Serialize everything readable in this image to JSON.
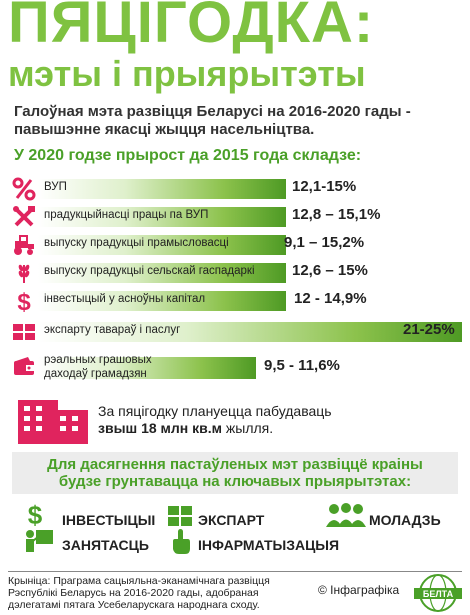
{
  "title": {
    "main": "ПЯЦІГОДКА:",
    "sub": "мэты і прыярытэты"
  },
  "goal": {
    "text": "Галоўная мэта развіцця Беларусі на 2016-2020 гады - павышэнне якасці жыцця насельніцтва."
  },
  "growth": {
    "heading": "У 2020 годзе прырост да 2015 года складзе:",
    "items": [
      {
        "label": "ВУП",
        "value": "12,1-15%",
        "icon": "percent-icon"
      },
      {
        "label": "прадукцыйнасці працы па ВУП",
        "value": "12,8 – 15,1%",
        "icon": "tools-icon"
      },
      {
        "label": "выпуску прадукцыі прамысловасці",
        "value": "9,1 – 15,2%",
        "icon": "tractor-icon"
      },
      {
        "label": "выпуску прадукцыі сельскай гаспадаркі",
        "value": "12,6 – 15%",
        "icon": "wheat-icon"
      },
      {
        "label": "інвестыцый у асноўны капітал",
        "value": "12 - 14,9%",
        "icon": "dollar-icon"
      },
      {
        "label": "экспарту тавараў і паслуг",
        "value": "21-25%",
        "icon": "containers-icon"
      },
      {
        "label_line1": "рэальных грашовых",
        "label_line2": "даходаў грамадзян",
        "value": "9,5 - 11,6%",
        "icon": "wallet-icon"
      }
    ]
  },
  "housing": {
    "line1": "За пяцігодку плануецца пабудаваць",
    "line2": "звыш 18 млн кв.м",
    "line2_rest": " жылля."
  },
  "priorities": {
    "heading_line1": "Для дасягнення пастаўленых мэт развіццё краіны",
    "heading_line2": "будзе грунтавацца на ключавых прыярытэтах:",
    "items": {
      "investments": "ІНВЕСТЫЦЫІ",
      "export": "ЭКСПАРТ",
      "youth": "МОЛАДЗЬ",
      "employment": "ЗАНЯТАСЦЬ",
      "informatization": "ІНФАРМАТЫЗАЦЫЯ"
    }
  },
  "footer": {
    "source_line1": "Крыніца: Праграма сацыяльна-эканамічнага развіцця",
    "source_line2": "Рэспублікі Беларусь на 2016-2020 гады, адобраная",
    "source_line3": "дэлегатамі пятага Усебеларускага народнага сходу.",
    "credit": "© Інфаграфіка",
    "logo_text": "БЕЛТА"
  },
  "colors": {
    "green": "#7fc241",
    "dark_green": "#4aa028",
    "red": "#e0245e"
  }
}
